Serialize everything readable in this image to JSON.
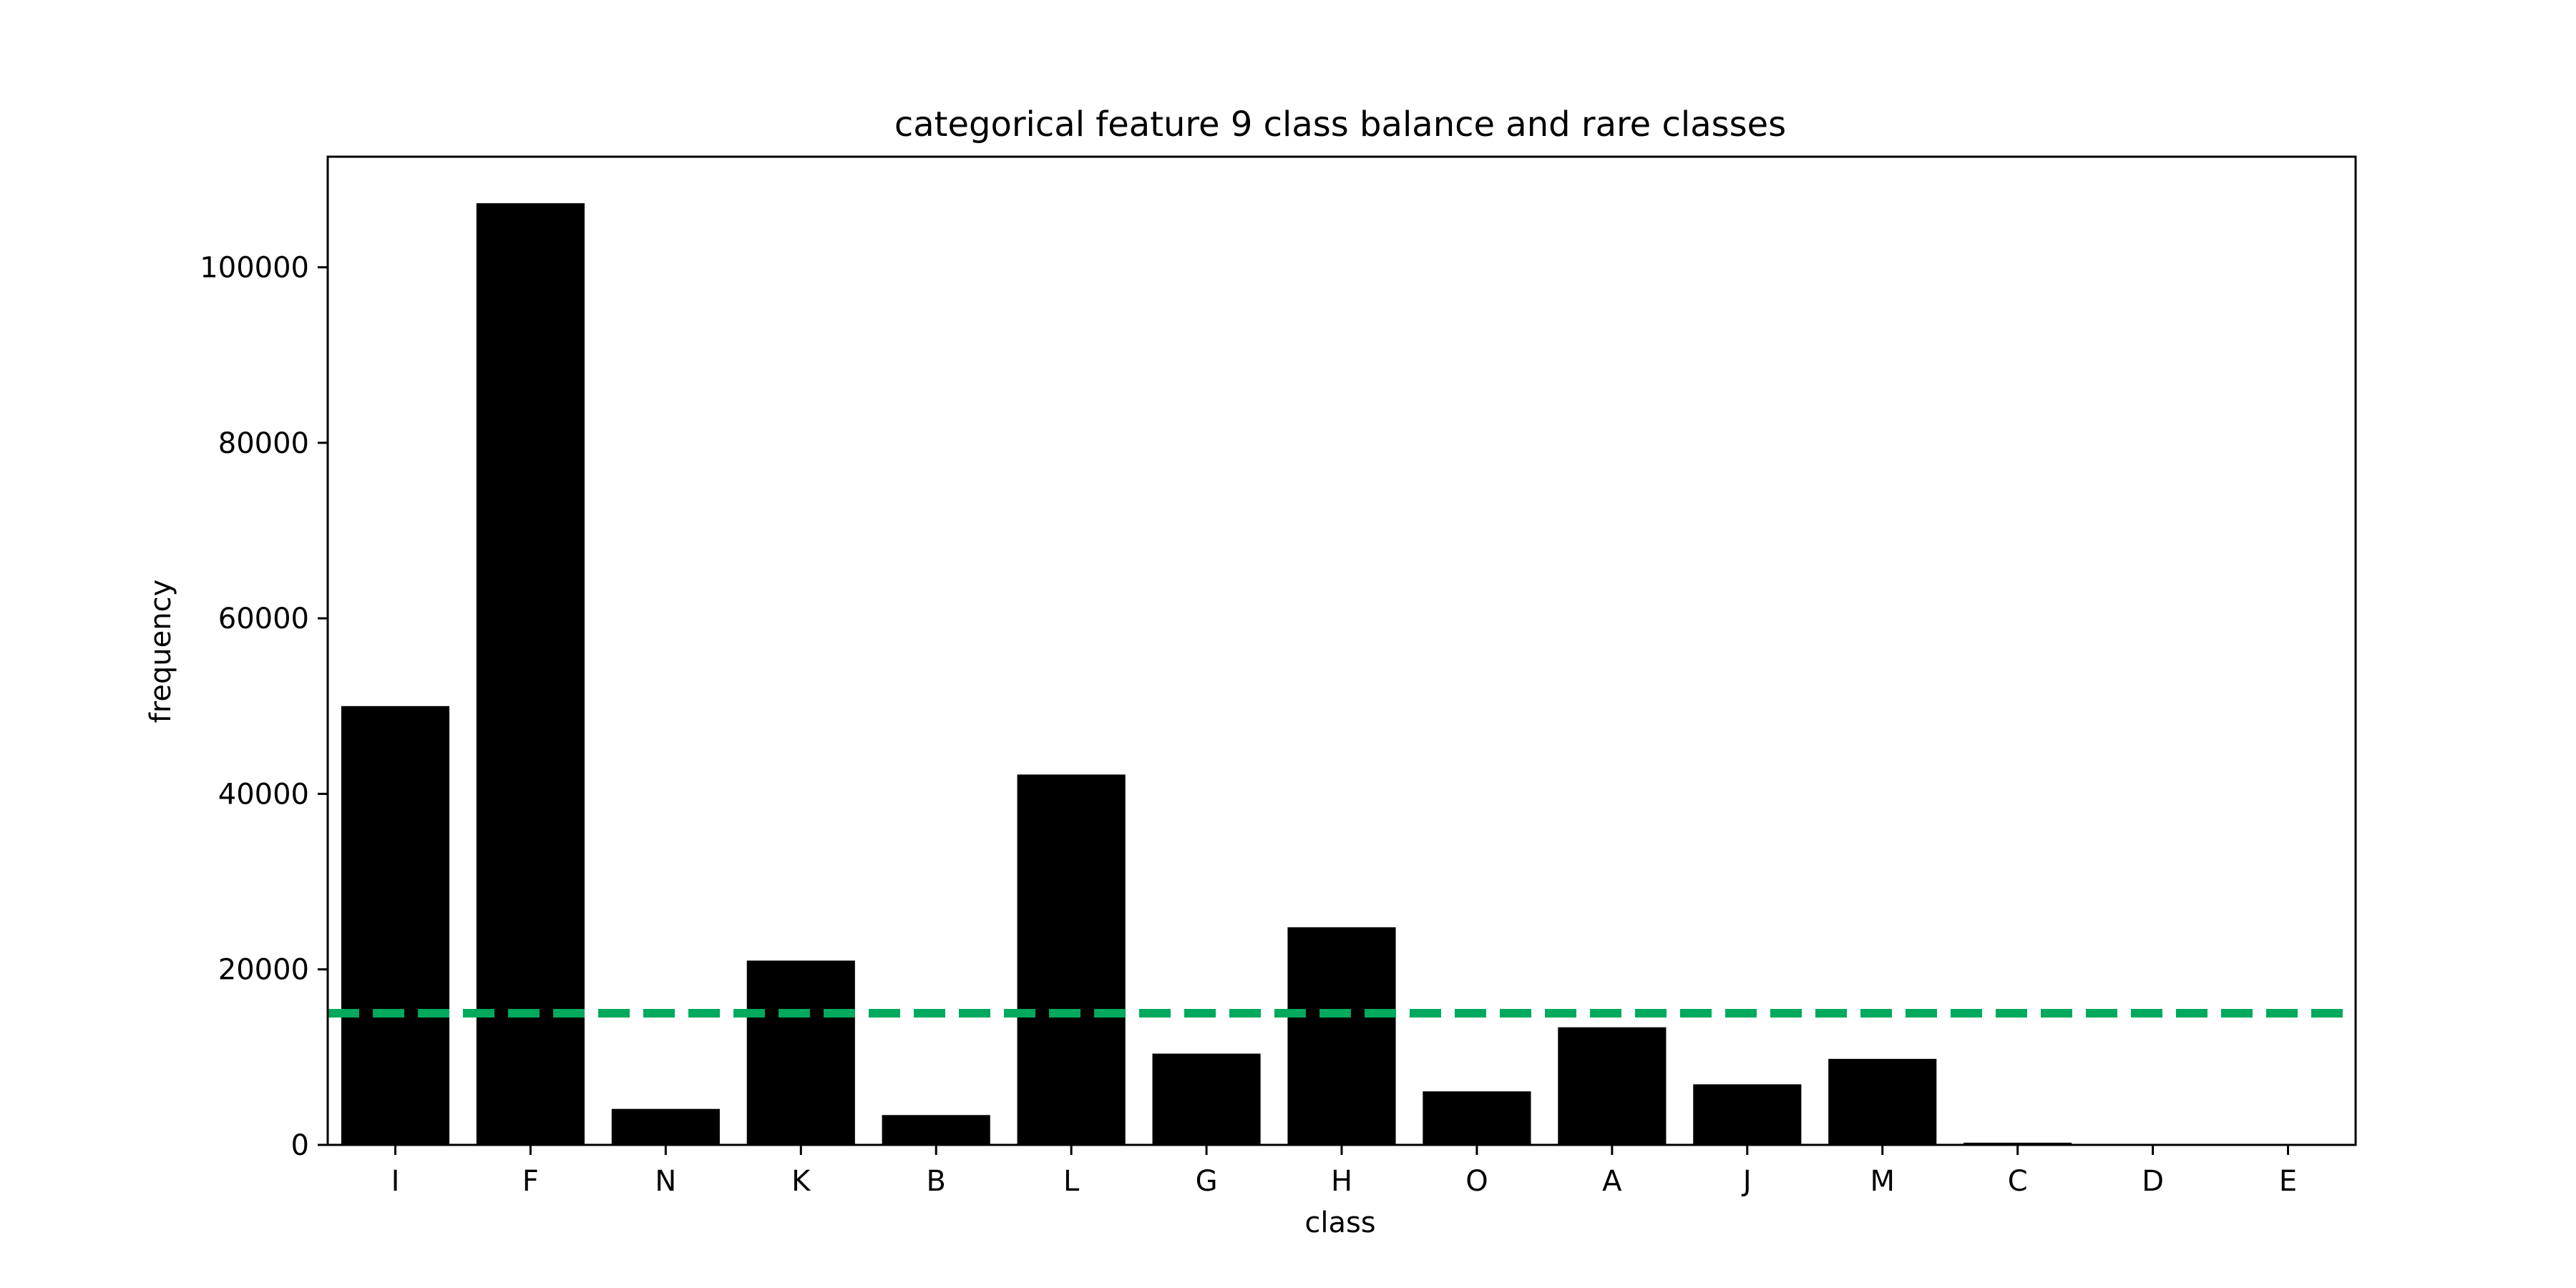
{
  "chart_data": {
    "type": "bar",
    "title": "categorical feature 9 class balance and rare classes",
    "xlabel": "class",
    "ylabel": "frequency",
    "categories": [
      "I",
      "F",
      "N",
      "K",
      "B",
      "L",
      "G",
      "H",
      "O",
      "A",
      "J",
      "M",
      "C",
      "D",
      "E"
    ],
    "values": [
      50000,
      107300,
      4100,
      21000,
      3400,
      42200,
      10400,
      24800,
      6100,
      13400,
      6900,
      9800,
      250,
      60,
      40
    ],
    "ylim": [
      0,
      112600
    ],
    "yticks": [
      0,
      20000,
      40000,
      60000,
      80000,
      100000
    ],
    "threshold": 15000,
    "grid": false,
    "colors": {
      "bar": "#000000",
      "threshold": "#00a95c",
      "axes": "#000000"
    }
  }
}
